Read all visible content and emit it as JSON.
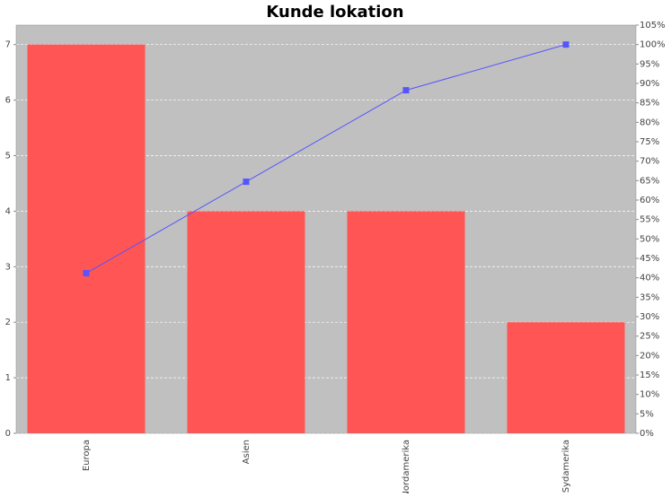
{
  "chart_data": {
    "type": "bar",
    "title": "Kunde lokation",
    "categories": [
      "Europa",
      "Asien",
      "Nordamerika",
      "Sydamerika"
    ],
    "series": [
      {
        "color": "#ff5555",
        "values": [
          7,
          4,
          4,
          2
        ]
      },
      {
        "type": "line",
        "axis": "y2",
        "color": "#5555ff",
        "values": [
          41.18,
          64.71,
          88.24,
          100
        ]
      }
    ],
    "ylim": [
      0,
      7.35
    ],
    "yticks": [
      0,
      1,
      2,
      3,
      4,
      5,
      6,
      7
    ],
    "y2lim": [
      0,
      105
    ],
    "y2ticks": [
      {
        "value": 0,
        "label": "0%"
      },
      {
        "value": 5,
        "label": "5%"
      },
      {
        "value": 10,
        "label": "10%"
      },
      {
        "value": 15,
        "label": "15%"
      },
      {
        "value": 20,
        "label": "20%"
      },
      {
        "value": 25,
        "label": "25%"
      },
      {
        "value": 30,
        "label": "30%"
      },
      {
        "value": 35,
        "label": "35%"
      },
      {
        "value": 40,
        "label": "40%"
      },
      {
        "value": 45,
        "label": "45%"
      },
      {
        "value": 50,
        "label": "50%"
      },
      {
        "value": 55,
        "label": "55%"
      },
      {
        "value": 60,
        "label": "60%"
      },
      {
        "value": 65,
        "label": "65%"
      },
      {
        "value": 70,
        "label": "70%"
      },
      {
        "value": 75,
        "label": "75%"
      },
      {
        "value": 80,
        "label": "80%"
      },
      {
        "value": 85,
        "label": "85%"
      },
      {
        "value": 90,
        "label": "90%"
      },
      {
        "value": 95,
        "label": "95%"
      },
      {
        "value": 100,
        "label": "100%"
      },
      {
        "value": 105,
        "label": "105%"
      }
    ],
    "grid": true,
    "background": "#c0c0c0"
  }
}
